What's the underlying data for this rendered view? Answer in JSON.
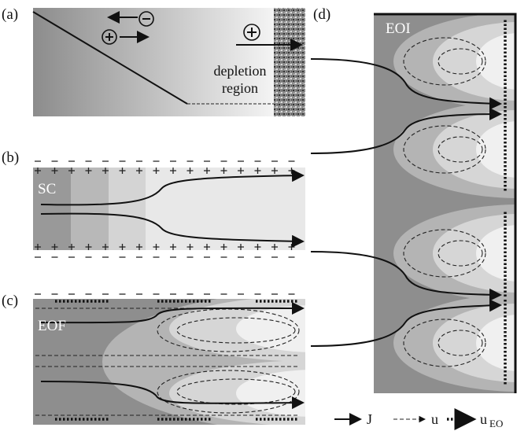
{
  "panels": [
    {
      "label": "(a)",
      "annotation": [
        "depletion",
        "region"
      ]
    },
    {
      "label": "(b)",
      "annotation": "SC"
    },
    {
      "label": "(c)",
      "annotation": "EOF"
    },
    {
      "label": "(d)",
      "annotation": "EOI"
    }
  ],
  "legend": [
    {
      "symbol": "J"
    },
    {
      "symbol": "u"
    },
    {
      "symbol": "u",
      "subscript": "EO"
    }
  ]
}
